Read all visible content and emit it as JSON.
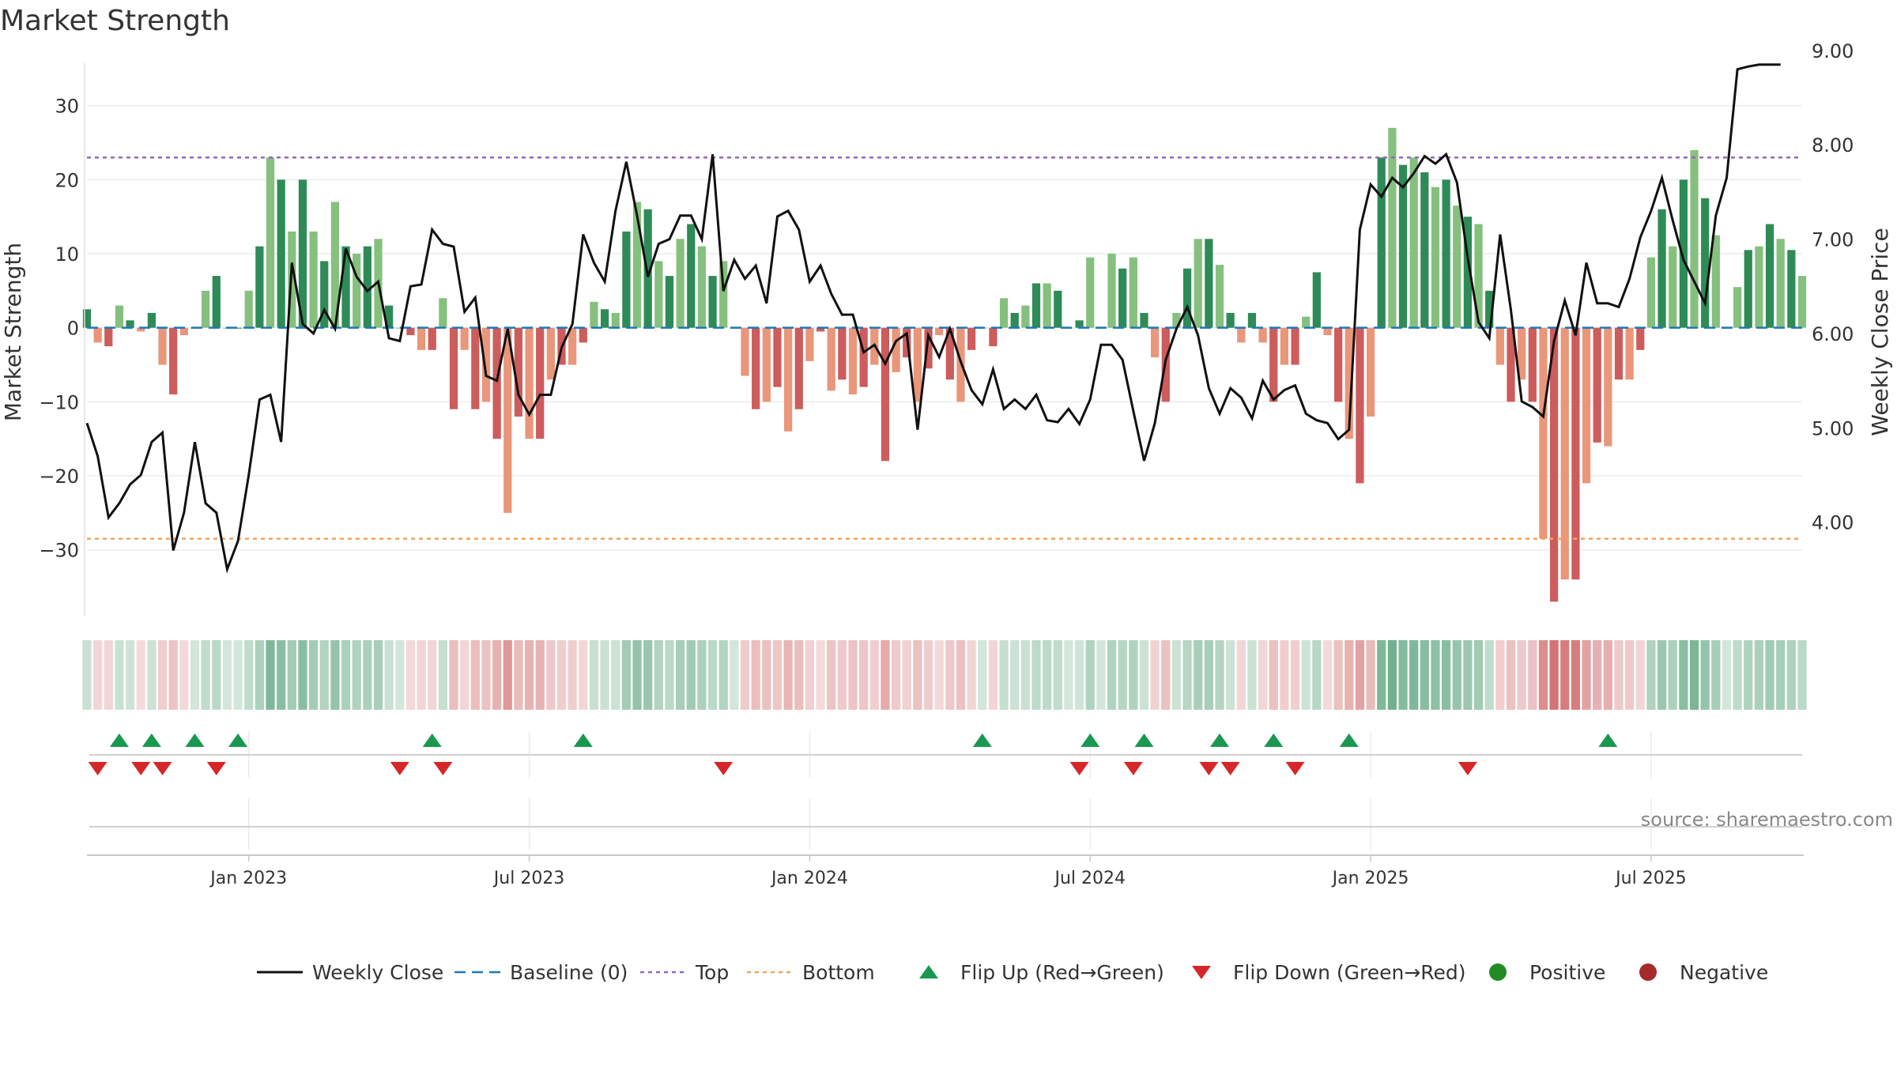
{
  "page_title": "Market Strength",
  "chart_data": {
    "type": "bar",
    "title": "Market Strength",
    "source": "source: sharemaestro.com",
    "colors": {
      "pos_strong": "#2e8b57",
      "pos_light": "#86c07e",
      "neg_strong": "#cd5c5c",
      "neg_light": "#e9967a",
      "line": "#111111",
      "baseline": "#1f77b4",
      "top": "#9467bd",
      "bottom": "#f4a460",
      "flip_up": "#1a9850",
      "flip_down": "#d62728",
      "positive": "#228b22",
      "negative": "#a52a2a"
    },
    "left_axis": {
      "label": "Market Strength",
      "ticks": [
        30,
        20,
        10,
        0,
        -10,
        -20,
        -30
      ],
      "range": [
        -39,
        40
      ]
    },
    "right_axis": {
      "label": "Weekly Close Price",
      "ticks": [
        "9.00",
        "8.00",
        "7.00",
        "6.00",
        "5.00",
        "4.00"
      ],
      "range": [
        3.0,
        9.2
      ]
    },
    "top_level": 23,
    "bottom_level": -28.5,
    "baseline": 0,
    "x_tick_labels": [
      "Jan 2023",
      "Jul 2023",
      "Jan 2024",
      "Jul 2024",
      "Jan 2025",
      "Jul 2025"
    ],
    "x_tick_weeks": [
      15,
      41,
      67,
      93,
      119,
      145
    ],
    "strength_weekly": [
      2.5,
      -2,
      -2.5,
      3,
      1,
      -0.5,
      2,
      -5,
      -9,
      -1,
      0,
      5,
      7,
      0,
      0,
      5,
      11,
      23,
      20,
      13,
      20,
      13,
      9,
      17,
      11,
      10,
      11,
      12,
      3,
      0,
      -1,
      -3,
      -3,
      4,
      -11,
      -3,
      -11,
      -10,
      -15,
      -25,
      -12,
      -15,
      -15,
      -7,
      -5,
      -5,
      -2,
      3.5,
      2.5,
      2,
      13,
      17,
      16,
      9,
      7,
      12,
      14,
      11,
      7,
      9,
      0,
      -6.5,
      -11,
      -10,
      -8,
      -14,
      -11,
      -4.5,
      -0.5,
      -8.5,
      -7,
      -9,
      -8,
      -5,
      -18,
      -6,
      -4,
      -10,
      -5.5,
      -1,
      -7,
      -10,
      -3,
      0,
      -2.5,
      4,
      2,
      3,
      6,
      6,
      5,
      0,
      1,
      9.5,
      0,
      10,
      8,
      9.5,
      2,
      -4,
      -10,
      2,
      8,
      12,
      12,
      8.5,
      2,
      -2,
      2,
      -2,
      -10,
      -5,
      -5,
      1.5,
      7.5,
      -1,
      -10,
      -15,
      -21,
      -12,
      23,
      27,
      22,
      23,
      21,
      19,
      20,
      16.5,
      15,
      14,
      5,
      -5,
      -10,
      -7,
      -10,
      -28.5,
      -37,
      -34,
      -34,
      -21,
      -15.5,
      -16,
      -7,
      -7,
      -3,
      9.5,
      16,
      11,
      20,
      24,
      17.5,
      12.5,
      0,
      5.5,
      10.5,
      11,
      14,
      12,
      10.5,
      7
    ],
    "close_weekly": [
      5.05,
      4.7,
      4.05,
      4.2,
      4.4,
      4.5,
      4.85,
      4.95,
      3.7,
      4.1,
      4.85,
      4.2,
      4.1,
      3.5,
      3.8,
      4.5,
      5.3,
      5.35,
      4.85,
      6.75,
      6.1,
      6.0,
      6.25,
      6.05,
      6.9,
      6.6,
      6.45,
      6.55,
      5.95,
      5.92,
      6.5,
      6.52,
      7.1,
      6.95,
      6.92,
      6.23,
      6.38,
      5.55,
      5.5,
      6.05,
      5.35,
      5.14,
      5.35,
      5.35,
      5.85,
      6.1,
      7.05,
      6.75,
      6.55,
      7.3,
      7.82,
      7.25,
      6.6,
      6.95,
      7.0,
      7.25,
      7.25,
      7.0,
      7.9,
      6.45,
      6.78,
      6.58,
      6.72,
      6.32,
      7.24,
      7.3,
      7.1,
      6.55,
      6.72,
      6.42,
      6.2,
      6.2,
      5.8,
      5.88,
      5.68,
      5.92,
      6.0,
      4.98,
      5.98,
      5.75,
      6.05,
      5.7,
      5.4,
      5.25,
      5.62,
      5.2,
      5.3,
      5.2,
      5.35,
      5.08,
      5.06,
      5.2,
      5.04,
      5.3,
      5.88,
      5.88,
      5.72,
      5.18,
      4.65,
      5.05,
      5.72,
      6.05,
      6.28,
      5.98,
      5.42,
      5.15,
      5.42,
      5.32,
      5.1,
      5.5,
      5.3,
      5.4,
      5.45,
      5.15,
      5.08,
      5.05,
      4.88,
      4.98,
      7.1,
      7.58,
      7.45,
      7.65,
      7.55,
      7.7,
      7.88,
      7.8,
      7.9,
      7.6,
      6.8,
      6.12,
      5.95,
      7.05,
      6.25,
      5.28,
      5.22,
      5.12,
      5.92,
      6.35,
      5.98,
      6.75,
      6.32,
      6.32,
      6.28,
      6.58,
      7.02,
      7.3,
      7.65,
      7.2,
      6.78,
      6.55,
      6.32,
      7.25,
      7.65,
      8.8,
      8.83,
      8.85,
      8.85,
      8.85
    ],
    "flip_up_weeks": [
      3,
      6,
      10,
      14,
      32,
      46,
      83,
      93,
      98,
      105,
      110,
      117,
      141
    ],
    "flip_down_weeks": [
      1,
      5,
      7,
      12,
      29,
      33,
      59,
      92,
      97,
      104,
      106,
      112,
      128
    ],
    "legend": [
      {
        "key": "line",
        "label": "Weekly Close"
      },
      {
        "key": "baseline",
        "label": "Baseline (0)"
      },
      {
        "key": "top",
        "label": "Top"
      },
      {
        "key": "bottom",
        "label": "Bottom"
      },
      {
        "key": "flip_up",
        "label": "Flip Up (Red→Green)"
      },
      {
        "key": "flip_down",
        "label": "Flip Down (Green→Red)"
      },
      {
        "key": "positive",
        "label": "Positive"
      },
      {
        "key": "negative",
        "label": "Negative"
      }
    ]
  }
}
